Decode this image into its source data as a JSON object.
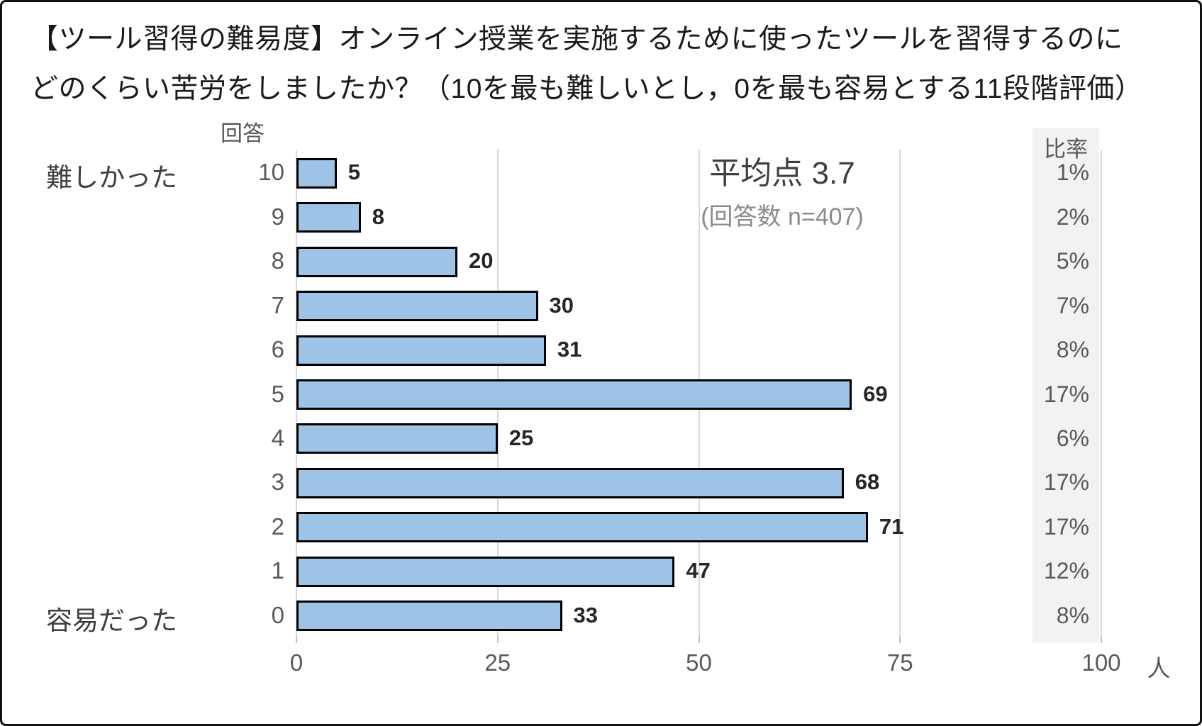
{
  "title": {
    "line1": "【ツール習得の難易度】オンライン授業を実施するために使ったツールを習得するのに",
    "line2": "どのくらい苦労をしましたか？（10を最も難しいとし，0を最も容易とする11段階評価）"
  },
  "chart_data": {
    "type": "bar",
    "orientation": "horizontal",
    "y_axis_header": "回答",
    "ratio_column_header": "比率",
    "left_label_top": "難しかった",
    "left_label_bottom": "容易だった",
    "categories": [
      "10",
      "9",
      "8",
      "7",
      "6",
      "5",
      "4",
      "3",
      "2",
      "1",
      "0"
    ],
    "values": [
      5,
      8,
      20,
      30,
      31,
      69,
      25,
      68,
      71,
      47,
      33
    ],
    "percentages": [
      "1%",
      "2%",
      "5%",
      "7%",
      "8%",
      "17%",
      "6%",
      "17%",
      "17%",
      "12%",
      "8%"
    ],
    "annotation": {
      "average": "平均点 3.7",
      "respondents": "(回答数 n=407)"
    },
    "x_ticks": [
      "0",
      "25",
      "50",
      "75",
      "100"
    ],
    "x_unit": "人",
    "xlim": [
      0,
      100
    ],
    "grid": true,
    "colors": {
      "bar_fill": "#9DC3E6",
      "bar_border": "#000000",
      "gridline": "#D9D9D9",
      "ratio_column_bg": "#F2F2F2",
      "frame_border": "#111111"
    }
  }
}
